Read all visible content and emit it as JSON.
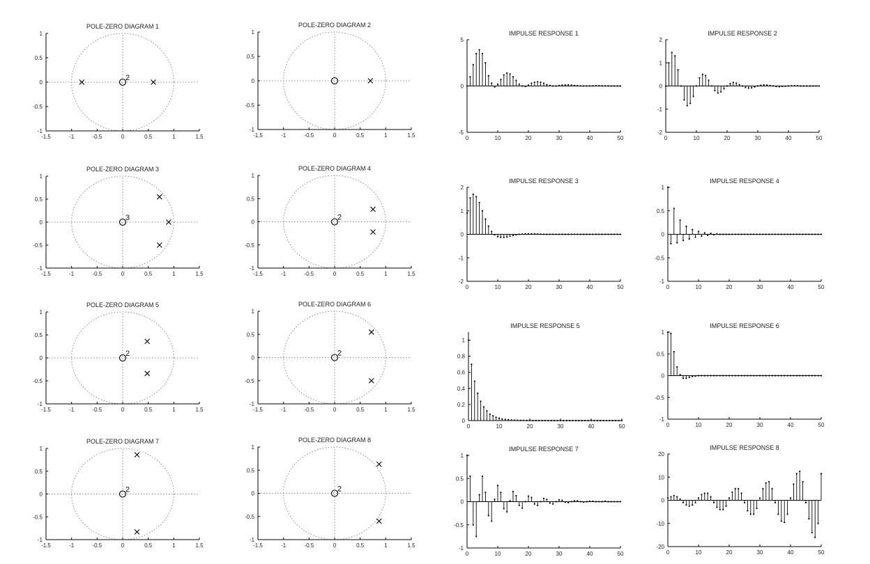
{
  "chart_data": [
    {
      "type": "scatter",
      "kind": "pole-zero",
      "title": "POLE-ZERO DIAGRAM 1",
      "xlim": [
        -1.5,
        1.5
      ],
      "ylim": [
        -1,
        1
      ],
      "xticks": [
        "-1.5",
        "-1",
        "-0.5",
        "0",
        "0.5",
        "1",
        "1.5"
      ],
      "yticks": [
        "1",
        "0.5",
        "0",
        "-0.5",
        "-1"
      ],
      "unit_circle": true,
      "grid": "dotted axes",
      "zeros": [
        {
          "re": 0,
          "im": 0,
          "multiplicity": "2"
        }
      ],
      "poles": [
        {
          "re": -0.8,
          "im": 0
        },
        {
          "re": 0.6,
          "im": 0
        }
      ]
    },
    {
      "type": "scatter",
      "kind": "pole-zero",
      "title": "POLE-ZERO DIAGRAM 2",
      "xlim": [
        -1.5,
        1.5
      ],
      "ylim": [
        -1,
        1
      ],
      "xticks": [
        "-1.5",
        "-1",
        "-0.5",
        "0",
        "0.5",
        "1",
        "1.5"
      ],
      "yticks": [
        "1",
        "0.5",
        "0",
        "-0.5",
        "-1"
      ],
      "unit_circle": true,
      "grid": "dotted axes",
      "zeros": [
        {
          "re": 0,
          "im": 0,
          "multiplicity": ""
        }
      ],
      "poles": [
        {
          "re": 0.7,
          "im": 0
        }
      ]
    },
    {
      "type": "scatter",
      "kind": "pole-zero",
      "title": "POLE-ZERO DIAGRAM 3",
      "xlim": [
        -1.5,
        1.5
      ],
      "ylim": [
        -1,
        1
      ],
      "xticks": [
        "-1.5",
        "-1",
        "-0.5",
        "0",
        "0.5",
        "1",
        "1.5"
      ],
      "yticks": [
        "1",
        "0.5",
        "0",
        "-0.5",
        "-1"
      ],
      "unit_circle": true,
      "grid": "dotted axes",
      "zeros": [
        {
          "re": 0,
          "im": 0,
          "multiplicity": "3"
        }
      ],
      "poles": [
        {
          "re": 0.72,
          "im": 0.55
        },
        {
          "re": 0.9,
          "im": 0
        },
        {
          "re": 0.72,
          "im": -0.5
        }
      ]
    },
    {
      "type": "scatter",
      "kind": "pole-zero",
      "title": "POLE-ZERO DIAGRAM 4",
      "xlim": [
        -1.5,
        1.5
      ],
      "ylim": [
        -1,
        1
      ],
      "xticks": [
        "-1.5",
        "-1",
        "-0.5",
        "0",
        "0.5",
        "1",
        "1.5"
      ],
      "yticks": [
        "1",
        "0.5",
        "0",
        "-0.5",
        "-1"
      ],
      "unit_circle": true,
      "grid": "dotted axes",
      "zeros": [
        {
          "re": 0,
          "im": 0,
          "multiplicity": "2"
        }
      ],
      "poles": [
        {
          "re": 0.75,
          "im": 0.27
        },
        {
          "re": 0.75,
          "im": -0.22
        }
      ]
    },
    {
      "type": "scatter",
      "kind": "pole-zero",
      "title": "POLE-ZERO DIAGRAM 5",
      "xlim": [
        -1.5,
        1.5
      ],
      "ylim": [
        -1,
        1
      ],
      "xticks": [
        "-1.5",
        "-1",
        "-0.5",
        "0",
        "0.5",
        "1",
        "1.5"
      ],
      "yticks": [
        "1",
        "0.5",
        "0",
        "-0.5",
        "-1"
      ],
      "unit_circle": true,
      "grid": "dotted axes",
      "zeros": [
        {
          "re": 0,
          "im": 0,
          "multiplicity": "2"
        }
      ],
      "poles": [
        {
          "re": 0.48,
          "im": 0.36
        },
        {
          "re": 0.48,
          "im": -0.34
        }
      ]
    },
    {
      "type": "scatter",
      "kind": "pole-zero",
      "title": "POLE-ZERO DIAGRAM 6",
      "xlim": [
        -1.5,
        1.5
      ],
      "ylim": [
        -1,
        1
      ],
      "xticks": [
        "-1.5",
        "-1",
        "-0.5",
        "0",
        "0.5",
        "1",
        "1.5"
      ],
      "yticks": [
        "1",
        "0.5",
        "0",
        "-0.5",
        "-1"
      ],
      "unit_circle": true,
      "grid": "dotted axes",
      "zeros": [
        {
          "re": 0,
          "im": 0,
          "multiplicity": "2"
        }
      ],
      "poles": [
        {
          "re": 0.72,
          "im": 0.55
        },
        {
          "re": 0.72,
          "im": -0.5
        }
      ]
    },
    {
      "type": "scatter",
      "kind": "pole-zero",
      "title": "POLE-ZERO DIAGRAM 7",
      "xlim": [
        -1.5,
        1.5
      ],
      "ylim": [
        -1,
        1
      ],
      "xticks": [
        "-1.5",
        "-1",
        "-0.5",
        "0",
        "0.5",
        "1",
        "1.5"
      ],
      "yticks": [
        "1",
        "0.5",
        "0",
        "-0.5",
        "-1"
      ],
      "unit_circle": true,
      "grid": "dotted axes",
      "zeros": [
        {
          "re": 0,
          "im": 0,
          "multiplicity": "2"
        }
      ],
      "poles": [
        {
          "re": 0.28,
          "im": 0.86
        },
        {
          "re": 0.28,
          "im": -0.83
        }
      ]
    },
    {
      "type": "scatter",
      "kind": "pole-zero",
      "title": "POLE-ZERO DIAGRAM 8",
      "xlim": [
        -1.5,
        1.5
      ],
      "ylim": [
        -1,
        1
      ],
      "xticks": [
        "-1.5",
        "-1",
        "-0.5",
        "0",
        "0.5",
        "1",
        "1.5"
      ],
      "yticks": [
        "1",
        "0.5",
        "0",
        "-0.5",
        "-1"
      ],
      "unit_circle": true,
      "grid": "dotted axes",
      "zeros": [
        {
          "re": 0,
          "im": 0,
          "multiplicity": "2"
        }
      ],
      "poles": [
        {
          "re": 0.87,
          "im": 0.63
        },
        {
          "re": 0.87,
          "im": -0.6
        }
      ]
    },
    {
      "type": "stem",
      "title": "IMPULSE RESPONSE 1",
      "xlim": [
        0,
        50
      ],
      "ylim": [
        -5,
        5
      ],
      "xticks": [
        0,
        10,
        20,
        30,
        40,
        50
      ],
      "yticks": [
        5,
        0,
        -5
      ],
      "x_start": 0,
      "values": [
        0,
        1.0,
        2.3,
        3.5,
        3.9,
        3.5,
        2.5,
        1.1,
        0.3,
        -0.1,
        0.2,
        0.7,
        1.2,
        1.4,
        1.3,
        1.0,
        0.6,
        0.2,
        0,
        -0.05,
        0.1,
        0.3,
        0.4,
        0.45,
        0.4,
        0.3,
        0.15,
        0.05,
        0,
        0,
        0.05,
        0.1,
        0.12,
        0.12,
        0.1,
        0.06,
        0.03,
        0.01,
        0,
        0,
        0.01,
        0.02,
        0.03,
        0.03,
        0.02,
        0.01,
        0.01,
        0,
        0,
        0,
        0
      ]
    },
    {
      "type": "stem",
      "title": "IMPULSE RESPONSE 2",
      "xlim": [
        0,
        50
      ],
      "ylim": [
        -2,
        2
      ],
      "xticks": [
        0,
        10,
        20,
        30,
        40,
        50
      ],
      "yticks": [
        2,
        1,
        0,
        -1,
        -2
      ],
      "x_start": 0,
      "values": [
        0,
        1.0,
        1.45,
        1.3,
        0.7,
        0,
        -0.6,
        -0.85,
        -0.75,
        -0.45,
        0,
        0.35,
        0.5,
        0.45,
        0.25,
        0,
        -0.2,
        -0.3,
        -0.25,
        -0.12,
        0,
        0.1,
        0.15,
        0.12,
        0.06,
        0,
        -0.06,
        -0.09,
        -0.08,
        -0.04,
        0,
        0.03,
        0.05,
        0.04,
        0.02,
        0,
        -0.02,
        -0.03,
        -0.02,
        -0.01,
        0,
        0.01,
        0.01,
        0.01,
        0,
        0,
        0,
        0,
        0,
        0,
        0
      ]
    },
    {
      "type": "stem",
      "title": "IMPULSE RESPONSE 3",
      "xlim": [
        0,
        50
      ],
      "ylim": [
        -2,
        2
      ],
      "xticks": [
        0,
        10,
        20,
        30,
        40,
        50
      ],
      "yticks": [
        2,
        1,
        0,
        -1,
        -2
      ],
      "x_start": 0,
      "values": [
        0.9,
        1.55,
        1.7,
        1.6,
        1.35,
        1.0,
        0.65,
        0.35,
        0.12,
        -0.02,
        -0.1,
        -0.13,
        -0.13,
        -0.11,
        -0.08,
        -0.05,
        -0.02,
        0,
        0.01,
        0.02,
        0.02,
        0.02,
        0.02,
        0.01,
        0.01,
        0,
        0,
        0,
        0,
        0,
        0,
        0,
        0,
        0,
        0,
        0,
        0,
        0,
        0,
        0,
        0,
        0,
        0,
        0,
        0,
        0,
        0,
        0,
        0,
        0,
        0
      ]
    },
    {
      "type": "stem",
      "title": "IMPULSE RESPONSE 4",
      "xlim": [
        0,
        50
      ],
      "ylim": [
        -1,
        1
      ],
      "xticks": [
        0,
        10,
        20,
        30,
        40,
        50
      ],
      "yticks": [
        1,
        0.5,
        0,
        -0.5,
        -1
      ],
      "x_start": 0,
      "values": [
        1.0,
        -0.2,
        0.55,
        -0.18,
        0.3,
        -0.13,
        0.17,
        -0.1,
        0.1,
        -0.06,
        0.06,
        -0.04,
        0.03,
        -0.02,
        0.02,
        -0.01,
        0.01,
        0,
        0,
        0,
        0,
        0,
        0,
        0,
        0,
        0,
        0,
        0,
        0,
        0,
        0,
        0,
        0,
        0,
        0,
        0,
        0,
        0,
        0,
        0,
        0,
        0,
        0,
        0,
        0,
        0,
        0,
        0,
        0,
        0,
        0
      ]
    },
    {
      "type": "stem",
      "title": "IMPULSE RESPONSE 5",
      "xlim": [
        0,
        50
      ],
      "ylim": [
        0,
        1.1
      ],
      "xticks": [
        0,
        10,
        20,
        30,
        40,
        50
      ],
      "yticks": [
        1,
        0.8,
        0.6,
        0.4,
        0.2,
        0
      ],
      "x_start": 0,
      "values": [
        1.0,
        0.7,
        0.49,
        0.34,
        0.24,
        0.17,
        0.12,
        0.08,
        0.06,
        0.04,
        0.03,
        0.02,
        0.014,
        0.01,
        0.007,
        0.005,
        0.003,
        0.002,
        0.002,
        0.001,
        0.001,
        0,
        0,
        0,
        0,
        0,
        0,
        0,
        0,
        0,
        0,
        0,
        0,
        0,
        0,
        0,
        0,
        0,
        0,
        0,
        0,
        0,
        0,
        0,
        0,
        0,
        0,
        0,
        0,
        0,
        0
      ]
    },
    {
      "type": "stem",
      "title": "IMPULSE RESPONSE 6",
      "xlim": [
        0,
        50
      ],
      "ylim": [
        -1,
        1
      ],
      "xticks": [
        0,
        10,
        20,
        30,
        40,
        50
      ],
      "yticks": [
        1,
        0.5,
        0,
        -0.5,
        -1
      ],
      "x_start": 0,
      "values": [
        1.0,
        0.97,
        0.55,
        0.2,
        0.02,
        -0.06,
        -0.06,
        -0.04,
        -0.02,
        -0.01,
        0,
        0,
        0,
        0,
        0,
        0,
        0,
        0,
        0,
        0,
        0,
        0,
        0,
        0,
        0,
        0,
        0,
        0,
        0,
        0,
        0,
        0,
        0,
        0,
        0,
        0,
        0,
        0,
        0,
        0,
        0,
        0,
        0,
        0,
        0,
        0,
        0,
        0,
        0,
        0,
        0
      ]
    },
    {
      "type": "stem",
      "title": "IMPULSE RESPONSE 7",
      "xlim": [
        0,
        50
      ],
      "ylim": [
        -1,
        1
      ],
      "xticks": [
        0,
        10,
        20,
        30,
        40,
        50
      ],
      "yticks": [
        1,
        0.5,
        0,
        -0.5,
        -1
      ],
      "x_start": 0,
      "values": [
        1.0,
        0.55,
        -0.5,
        -0.75,
        0.15,
        0.55,
        0.2,
        -0.3,
        -0.42,
        0.05,
        0.35,
        0.2,
        -0.15,
        -0.22,
        0.02,
        0.22,
        0.13,
        -0.08,
        -0.14,
        0,
        0.12,
        0.09,
        -0.05,
        -0.08,
        0,
        0.07,
        0.05,
        -0.03,
        -0.05,
        0,
        0.04,
        0.03,
        -0.01,
        -0.02,
        0,
        0.02,
        0.02,
        0,
        -0.01,
        0,
        0.01,
        0.01,
        0,
        0,
        0,
        0.01,
        0,
        0,
        0,
        0,
        0
      ]
    },
    {
      "type": "stem",
      "title": "IMPULSE RESPONSE 8",
      "xlim": [
        0,
        50
      ],
      "ylim": [
        -20,
        20
      ],
      "xticks": [
        0,
        10,
        20,
        30,
        40,
        50
      ],
      "yticks": [
        20,
        10,
        0,
        -10,
        -20
      ],
      "x_start": 0,
      "values": [
        1,
        1.5,
        2,
        1.5,
        0.5,
        -1,
        -2,
        -2.5,
        -2,
        -1,
        1,
        2.5,
        3,
        3,
        1.5,
        -1,
        -3,
        -4,
        -4,
        -2.5,
        1,
        3.5,
        5,
        5,
        3,
        -1,
        -4.5,
        -6,
        -6,
        -3.5,
        1,
        5,
        7.5,
        8,
        5,
        -1,
        -6,
        -9,
        -9.5,
        -6,
        1,
        7,
        11.5,
        12.5,
        8,
        -1,
        -8,
        -14,
        -16,
        -10,
        11.5
      ]
    }
  ]
}
